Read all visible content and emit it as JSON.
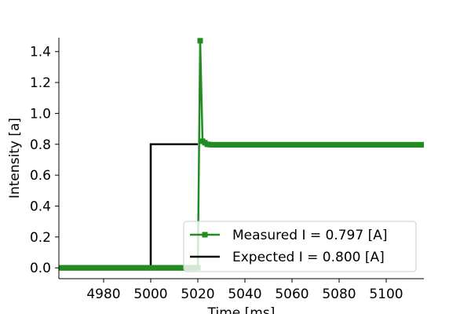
{
  "chart_data": {
    "type": "line",
    "title": "",
    "xlabel": "Time [ms]",
    "ylabel": "Intensity [a]",
    "xlim": [
      4961,
      5116
    ],
    "ylim": [
      -0.07,
      1.49
    ],
    "xticks": [
      4980,
      5000,
      5020,
      5040,
      5060,
      5080,
      5100
    ],
    "yticks": [
      0.0,
      0.2,
      0.4,
      0.6,
      0.8,
      1.0,
      1.2,
      1.4
    ],
    "xtick_labels": [
      "4980",
      "5000",
      "5020",
      "5040",
      "5060",
      "5080",
      "5100"
    ],
    "ytick_labels": [
      "0.0",
      "0.2",
      "0.4",
      "0.6",
      "0.8",
      "1.0",
      "1.2",
      "1.4"
    ],
    "grid": false,
    "legend_position": "lower-right",
    "series": [
      {
        "name": "Measured I = 0.797 [A]",
        "color": "#228b22",
        "marker": "square",
        "sample_step_ms": 1,
        "x_start": 4961,
        "x_end": 5116,
        "points": [
          [
            4961,
            0.0
          ],
          [
            5019,
            0.0
          ],
          [
            5020,
            0.0
          ],
          [
            5021,
            1.47
          ],
          [
            5022,
            0.82
          ],
          [
            5023,
            0.81
          ],
          [
            5024,
            0.8
          ],
          [
            5025,
            0.798
          ],
          [
            5026,
            0.797
          ],
          [
            5116,
            0.797
          ]
        ]
      },
      {
        "name": "Expected I = 0.800 [A]",
        "color": "#000000",
        "marker": "none",
        "points": [
          [
            4961,
            0.0
          ],
          [
            5000,
            0.0
          ],
          [
            5000,
            0.8
          ],
          [
            5020,
            0.8
          ]
        ]
      }
    ]
  }
}
